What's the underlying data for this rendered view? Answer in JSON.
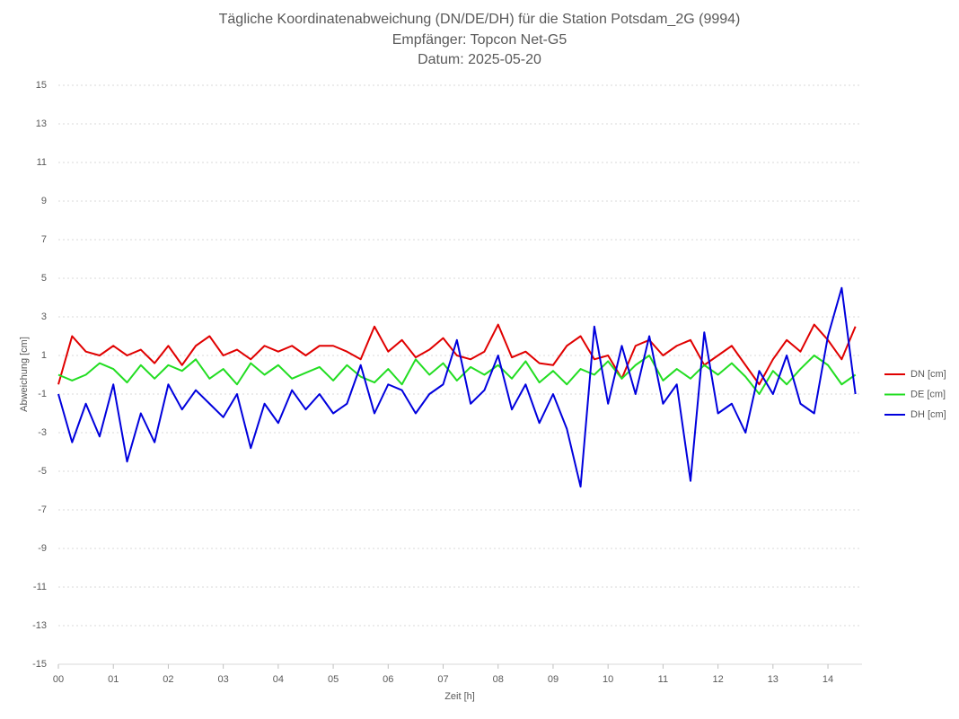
{
  "chart_data": {
    "type": "line",
    "title": [
      "Tägliche Koordinatenabweichung (DN/DE/DH) für die Station Potsdam_2G (9994)",
      "Empfänger: Topcon Net-G5",
      "Datum: 2025-05-20"
    ],
    "xlabel": "Zeit [h]",
    "ylabel": "Abweichung [cm]",
    "xlim": [
      0,
      14.62
    ],
    "ylim": [
      -15,
      15
    ],
    "xticks": [
      {
        "value": 0,
        "label": "00"
      },
      {
        "value": 1,
        "label": "01"
      },
      {
        "value": 2,
        "label": "02"
      },
      {
        "value": 3,
        "label": "03"
      },
      {
        "value": 4,
        "label": "04"
      },
      {
        "value": 5,
        "label": "05"
      },
      {
        "value": 6,
        "label": "06"
      },
      {
        "value": 7,
        "label": "07"
      },
      {
        "value": 8,
        "label": "08"
      },
      {
        "value": 9,
        "label": "09"
      },
      {
        "value": 10,
        "label": "10"
      },
      {
        "value": 11,
        "label": "11"
      },
      {
        "value": 12,
        "label": "12"
      },
      {
        "value": 13,
        "label": "13"
      },
      {
        "value": 14,
        "label": "14"
      }
    ],
    "yticks": [
      -15,
      -13,
      -11,
      -9,
      -7,
      -5,
      -3,
      -1,
      1,
      3,
      5,
      7,
      9,
      11,
      13,
      15
    ],
    "grid": true,
    "legend": "right",
    "x": [
      0,
      0.25,
      0.5,
      0.75,
      1,
      1.25,
      1.5,
      1.75,
      2,
      2.25,
      2.5,
      2.75,
      3,
      3.25,
      3.5,
      3.75,
      4,
      4.25,
      4.5,
      4.75,
      5,
      5.25,
      5.5,
      5.75,
      6,
      6.25,
      6.5,
      6.75,
      7,
      7.25,
      7.5,
      7.75,
      8,
      8.25,
      8.5,
      8.75,
      9,
      9.25,
      9.5,
      9.75,
      10,
      10.25,
      10.5,
      10.75,
      11,
      11.25,
      11.5,
      11.75,
      12,
      12.25,
      12.5,
      12.75,
      13,
      13.25,
      13.5,
      13.75,
      14,
      14.25,
      14.5
    ],
    "series": [
      {
        "name": "DN [cm]",
        "color": "#e00000",
        "values": [
          -0.5,
          2.0,
          1.2,
          1.0,
          1.5,
          1.0,
          1.3,
          0.6,
          1.5,
          0.5,
          1.5,
          2.0,
          1.0,
          1.3,
          0.8,
          1.5,
          1.2,
          1.5,
          1.0,
          1.5,
          1.5,
          1.2,
          0.8,
          2.5,
          1.2,
          1.8,
          0.9,
          1.3,
          1.9,
          1.0,
          0.8,
          1.2,
          2.6,
          0.9,
          1.2,
          0.6,
          0.5,
          1.5,
          2.0,
          0.8,
          1.0,
          -0.2,
          1.5,
          1.8,
          1.0,
          1.5,
          1.8,
          0.5,
          1.0,
          1.5,
          0.5,
          -0.5,
          0.8,
          1.8,
          1.2,
          2.6,
          1.8,
          0.8,
          2.5
        ]
      },
      {
        "name": "DE [cm]",
        "color": "#22dd22",
        "values": [
          0,
          -0.3,
          0,
          0.6,
          0.3,
          -0.4,
          0.5,
          -0.2,
          0.5,
          0.2,
          0.8,
          -0.2,
          0.3,
          -0.5,
          0.6,
          0.0,
          0.5,
          -0.2,
          0.1,
          0.4,
          -0.3,
          0.5,
          -0.1,
          -0.4,
          0.3,
          -0.5,
          0.8,
          0.0,
          0.6,
          -0.3,
          0.4,
          0.0,
          0.5,
          -0.2,
          0.7,
          -0.4,
          0.2,
          -0.5,
          0.3,
          0.0,
          0.7,
          -0.2,
          0.5,
          1.0,
          -0.3,
          0.3,
          -0.2,
          0.5,
          0.0,
          0.6,
          -0.1,
          -1.0,
          0.2,
          -0.5,
          0.3,
          1.0,
          0.5,
          -0.5,
          0.0
        ]
      },
      {
        "name": "DH [cm]",
        "color": "#0000dd",
        "values": [
          -1.0,
          -3.5,
          -1.5,
          -3.2,
          -0.5,
          -4.5,
          -2.0,
          -3.5,
          -0.5,
          -1.8,
          -0.8,
          -1.5,
          -2.2,
          -1.0,
          -3.8,
          -1.5,
          -2.5,
          -0.8,
          -1.8,
          -1.0,
          -2.0,
          -1.5,
          0.5,
          -2.0,
          -0.5,
          -0.8,
          -2.0,
          -1.0,
          -0.5,
          1.8,
          -1.5,
          -0.8,
          1.0,
          -1.8,
          -0.5,
          -2.5,
          -1.0,
          -2.8,
          -5.8,
          2.5,
          -1.5,
          1.5,
          -1.0,
          2.0,
          -1.5,
          -0.5,
          -5.5,
          2.2,
          -2.0,
          -1.5,
          -3.0,
          0.2,
          -1.0,
          1.0,
          -1.5,
          -2.0,
          2.0,
          4.5,
          -1.0
        ]
      }
    ]
  }
}
